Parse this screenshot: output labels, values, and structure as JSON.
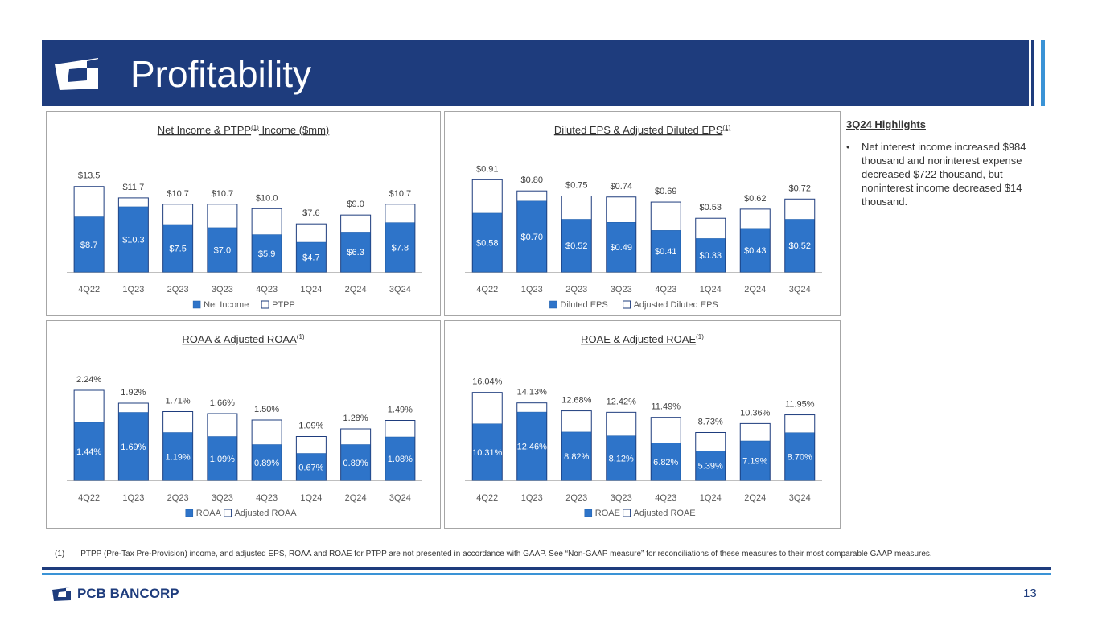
{
  "page": {
    "title": "Profitability",
    "page_number": "13",
    "brand": "PCB BANCORP",
    "colors": {
      "banner": "#1e3c7d",
      "accent": "#3a93d6",
      "bar_primary": "#2e74c9",
      "bar_secondary": "#ffffff"
    }
  },
  "highlights": {
    "title": "3Q24 Highlights",
    "items": [
      "Net interest income increased $984 thousand and noninterest expense decreased $722 thousand, but noninterest income decreased $14 thousand."
    ]
  },
  "footnote": {
    "marker": "(1)",
    "text": "PTPP (Pre-Tax Pre-Provision) income, and adjusted EPS, ROAA and ROAE for PTPP are not presented in accordance with GAAP. See “Non-GAAP measure” for reconciliations of these measures to their most comparable GAAP measures."
  },
  "chart_data": [
    {
      "id": "net_income",
      "type": "bar",
      "title": "Net Income & PTPP(1) Income ($mm)",
      "title_main": "Net Income & PTPP",
      "title_sup": "(1)",
      "title_rest": " Income ($mm)",
      "categories": [
        "4Q22",
        "1Q23",
        "2Q23",
        "3Q23",
        "4Q23",
        "1Q24",
        "2Q24",
        "3Q24"
      ],
      "series": [
        {
          "name": "Net Income",
          "values": [
            8.7,
            10.3,
            7.5,
            7.0,
            5.9,
            4.7,
            6.3,
            7.8
          ],
          "labels": [
            "$8.7",
            "$10.3",
            "$7.5",
            "$7.0",
            "$5.9",
            "$4.7",
            "$6.3",
            "$7.8"
          ]
        },
        {
          "name": "PTPP",
          "values": [
            13.5,
            11.7,
            10.7,
            10.7,
            10.0,
            7.6,
            9.0,
            10.7
          ],
          "labels": [
            "$13.5",
            "$11.7",
            "$10.7",
            "$10.7",
            "$10.0",
            "$7.6",
            "$9.0",
            "$10.7"
          ]
        }
      ],
      "ylim": [
        0,
        15.5
      ],
      "legend": "bottom"
    },
    {
      "id": "eps",
      "type": "bar",
      "title": "Diluted EPS & Adjusted Diluted EPS(1)",
      "title_main": "Diluted EPS & Adjusted Diluted EPS",
      "title_sup": "(1)",
      "title_rest": "",
      "categories": [
        "4Q22",
        "1Q23",
        "2Q23",
        "3Q23",
        "4Q23",
        "1Q24",
        "2Q24",
        "3Q24"
      ],
      "series": [
        {
          "name": "Diluted EPS",
          "values": [
            0.58,
            0.7,
            0.52,
            0.49,
            0.41,
            0.33,
            0.43,
            0.52
          ],
          "labels": [
            "$0.58",
            "$0.70",
            "$0.52",
            "$0.49",
            "$0.41",
            "$0.33",
            "$0.43",
            "$0.52"
          ]
        },
        {
          "name": "Adjusted Diluted EPS",
          "values": [
            0.91,
            0.8,
            0.75,
            0.74,
            0.69,
            0.53,
            0.62,
            0.72
          ],
          "labels": [
            "$0.91",
            "$0.80",
            "$0.75",
            "$0.74",
            "$0.69",
            "$0.53",
            "$0.62",
            "$0.72"
          ]
        }
      ],
      "ylim": [
        0,
        1.0
      ],
      "legend": "bottom"
    },
    {
      "id": "roaa",
      "type": "bar",
      "title": "ROAA & Adjusted ROAA(1)",
      "title_main": "ROAA & Adjusted ROAA",
      "title_sup": "(1)",
      "title_rest": "",
      "categories": [
        "4Q22",
        "1Q23",
        "2Q23",
        "3Q23",
        "4Q23",
        "1Q24",
        "2Q24",
        "3Q24"
      ],
      "series": [
        {
          "name": "ROAA",
          "values": [
            1.44,
            1.69,
            1.19,
            1.09,
            0.89,
            0.67,
            0.89,
            1.08
          ],
          "labels": [
            "1.44%",
            "1.69%",
            "1.19%",
            "1.09%",
            "0.89%",
            "0.67%",
            "0.89%",
            "1.08%"
          ]
        },
        {
          "name": "Adjusted ROAA",
          "values": [
            2.24,
            1.92,
            1.71,
            1.66,
            1.5,
            1.09,
            1.28,
            1.49
          ],
          "labels": [
            "2.24%",
            "1.92%",
            "1.71%",
            "1.66%",
            "1.50%",
            "1.09%",
            "1.28%",
            "1.49%"
          ]
        }
      ],
      "ylim": [
        0,
        2.5
      ],
      "legend": "bottom"
    },
    {
      "id": "roae",
      "type": "bar",
      "title": "ROAE & Adjusted ROAE(1)",
      "title_main": "ROAE & Adjusted ROAE",
      "title_sup": "(1)",
      "title_rest": "",
      "categories": [
        "4Q22",
        "1Q23",
        "2Q23",
        "3Q23",
        "4Q23",
        "1Q24",
        "2Q24",
        "3Q24"
      ],
      "series": [
        {
          "name": "ROAE",
          "values": [
            10.31,
            12.46,
            8.82,
            8.12,
            6.82,
            5.39,
            7.19,
            8.7
          ],
          "labels": [
            "10.31%",
            "12.46%",
            "8.82%",
            "8.12%",
            "6.82%",
            "5.39%",
            "7.19%",
            "8.70%"
          ]
        },
        {
          "name": "Adjusted ROAE",
          "values": [
            16.04,
            14.13,
            12.68,
            12.42,
            11.49,
            8.73,
            10.36,
            11.95
          ],
          "labels": [
            "16.04%",
            "14.13%",
            "12.68%",
            "12.42%",
            "11.49%",
            "8.73%",
            "10.36%",
            "11.95%"
          ]
        }
      ],
      "ylim": [
        0,
        17.9
      ],
      "legend": "bottom"
    }
  ]
}
